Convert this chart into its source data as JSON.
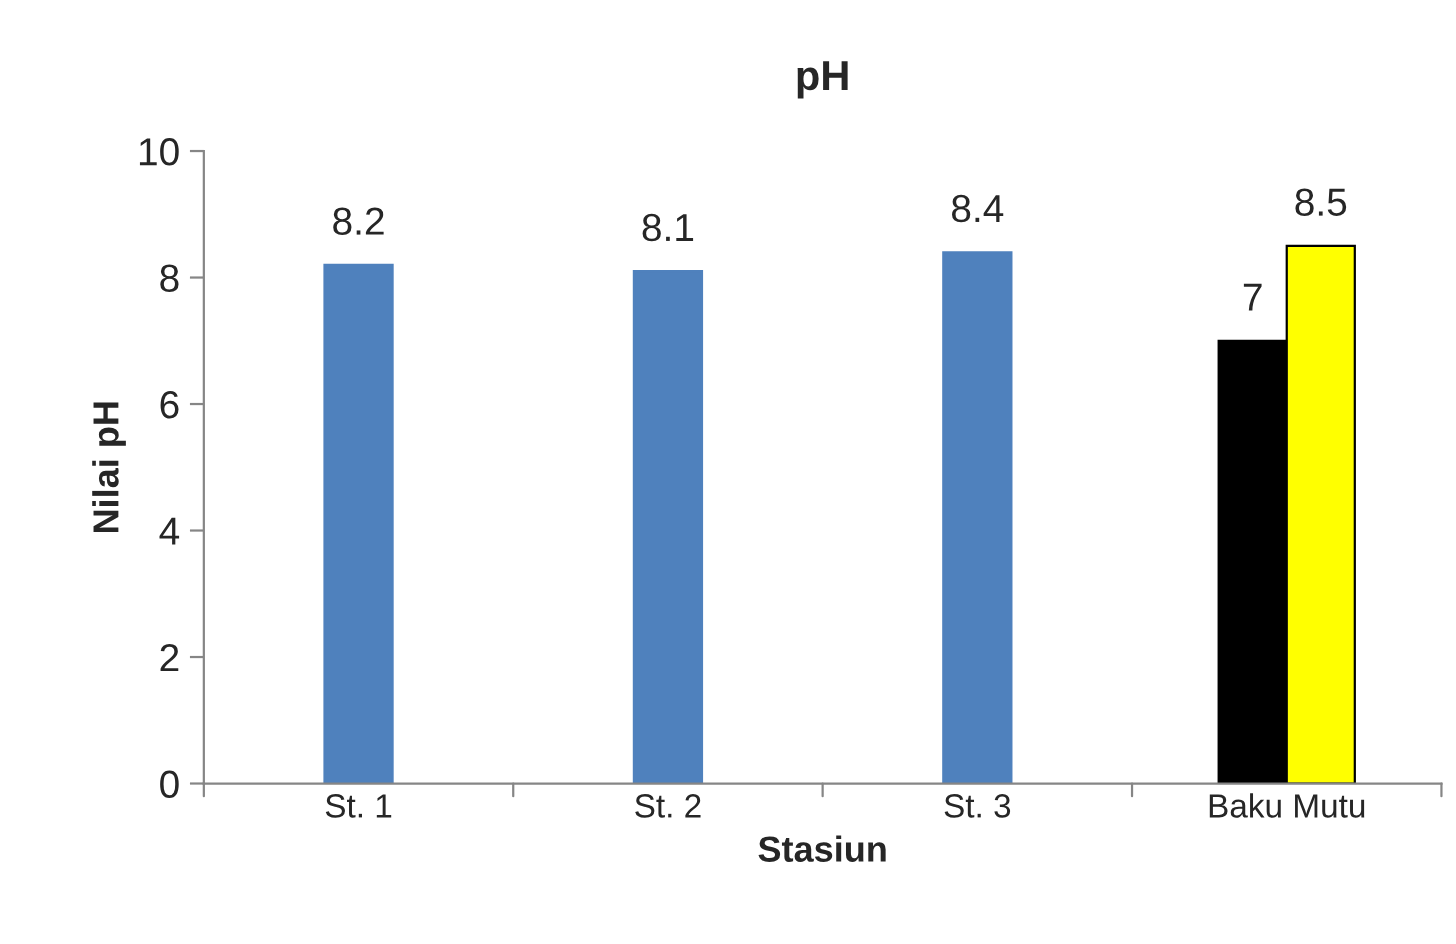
{
  "chart_data": {
    "type": "bar",
    "title": "pH",
    "xlabel": "Stasiun",
    "ylabel": "Nilai pH",
    "categories": [
      "St. 1",
      "St. 2",
      "St. 3",
      "Baku Mutu"
    ],
    "series": [
      {
        "color": "#4f81bd",
        "values": [
          8.2,
          8.1,
          8.4,
          null
        ]
      },
      {
        "color": "#000000",
        "values": [
          null,
          null,
          null,
          7
        ]
      },
      {
        "color": "#ffff00",
        "values": [
          null,
          null,
          null,
          8.5
        ]
      }
    ],
    "ylim": [
      0,
      10
    ],
    "yticks": [
      0,
      2,
      4,
      6,
      8,
      10
    ],
    "data_labels": true,
    "grid": false,
    "legend": false
  }
}
